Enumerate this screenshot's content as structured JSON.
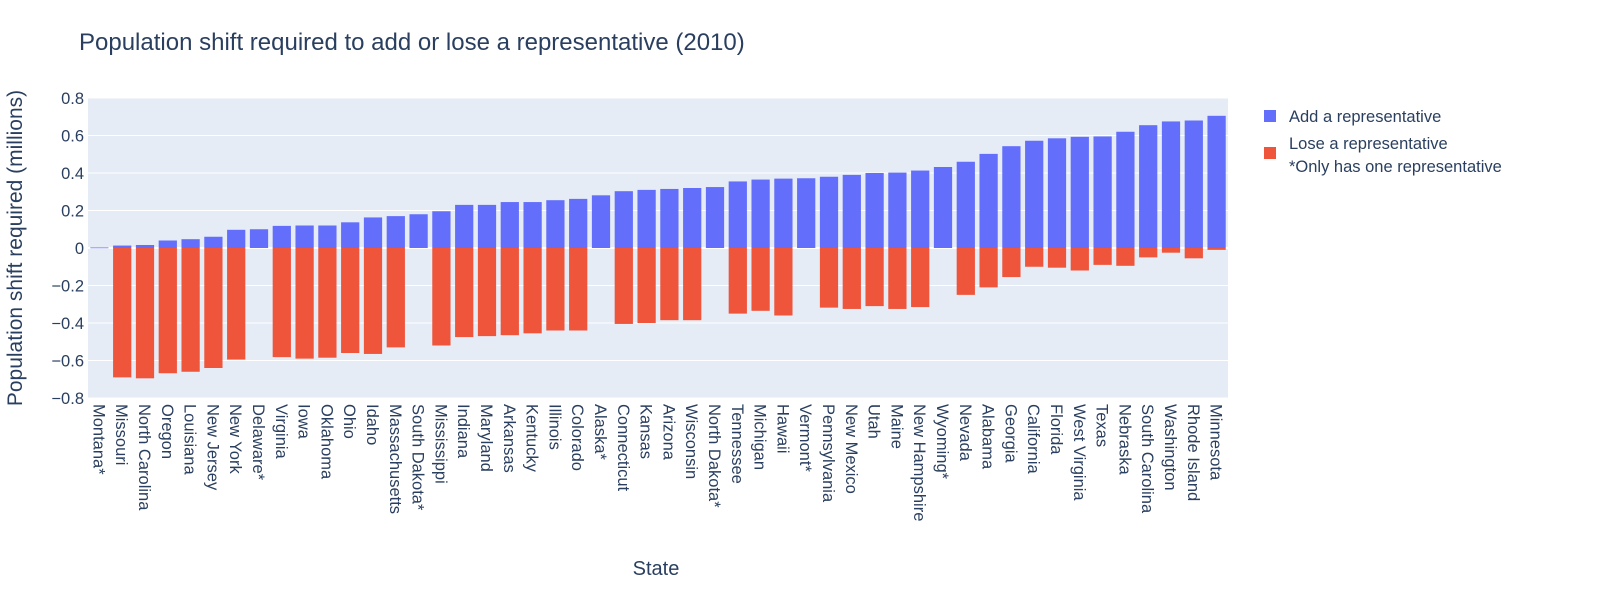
{
  "chart_data": {
    "type": "bar",
    "barmode": "overlay",
    "title": "Population shift required to add or lose a representative (2010)",
    "xlabel": "State",
    "ylabel": "Population shift required (millions)",
    "ylim": [
      -0.8,
      0.8
    ],
    "yticks": [
      0.8,
      0.6,
      0.4,
      0.2,
      0,
      -0.2,
      -0.4,
      -0.6,
      -0.8
    ],
    "ytick_labels": [
      "0.8",
      "0.6",
      "0.4",
      "0.2",
      "0",
      "−0.2",
      "−0.4",
      "−0.6",
      "−0.8"
    ],
    "grid": true,
    "legend_position": "right",
    "categories": [
      "Montana*",
      "Missouri",
      "North Carolina",
      "Oregon",
      "Louisiana",
      "New Jersey",
      "New York",
      "Delaware*",
      "Virginia",
      "Iowa",
      "Oklahoma",
      "Ohio",
      "Idaho",
      "Massachusetts",
      "South Dakota*",
      "Mississippi",
      "Indiana",
      "Maryland",
      "Arkansas",
      "Kentucky",
      "Illinois",
      "Colorado",
      "Alaska*",
      "Connecticut",
      "Kansas",
      "Arizona",
      "Wisconsin",
      "North Dakota*",
      "Tennessee",
      "Michigan",
      "Hawaii",
      "Vermont*",
      "Pennsylvania",
      "New Mexico",
      "Utah",
      "Maine",
      "New Hampshire",
      "Wyoming*",
      "Nevada",
      "Alabama",
      "Georgia",
      "California",
      "Florida",
      "West Virginia",
      "Texas",
      "Nebraska",
      "South Carolina",
      "Washington",
      "Rhode Island",
      "Minnesota"
    ],
    "series": [
      {
        "name": "Add a representative",
        "color": "#636efa",
        "values": [
          0.003,
          0.013,
          0.016,
          0.04,
          0.047,
          0.06,
          0.097,
          0.1,
          0.118,
          0.12,
          0.12,
          0.137,
          0.163,
          0.17,
          0.18,
          0.196,
          0.23,
          0.23,
          0.245,
          0.245,
          0.255,
          0.262,
          0.281,
          0.303,
          0.31,
          0.315,
          0.32,
          0.325,
          0.355,
          0.365,
          0.37,
          0.372,
          0.38,
          0.39,
          0.4,
          0.402,
          0.413,
          0.432,
          0.46,
          0.502,
          0.543,
          0.572,
          0.585,
          0.593,
          0.595,
          0.62,
          0.655,
          0.675,
          0.68,
          0.705
        ]
      },
      {
        "name": "Lose a representative",
        "color": "#ef553b",
        "values": [
          0,
          -0.69,
          -0.695,
          -0.668,
          -0.66,
          -0.64,
          -0.595,
          0,
          -0.582,
          -0.59,
          -0.585,
          -0.56,
          -0.565,
          -0.53,
          0,
          -0.52,
          -0.475,
          -0.47,
          -0.465,
          -0.455,
          -0.44,
          -0.44,
          0,
          -0.405,
          -0.4,
          -0.385,
          -0.385,
          0,
          -0.35,
          -0.335,
          -0.36,
          0,
          -0.318,
          -0.325,
          -0.31,
          -0.325,
          -0.315,
          0,
          -0.25,
          -0.21,
          -0.155,
          -0.1,
          -0.105,
          -0.12,
          -0.09,
          -0.095,
          -0.05,
          -0.025,
          -0.055,
          -0.01
        ]
      }
    ],
    "legend_entries": [
      {
        "label": "Add a representative",
        "color": "#636efa"
      },
      {
        "label": "Lose a representative",
        "color": "#ef553b"
      }
    ],
    "annotation": "*Only has one representative"
  }
}
